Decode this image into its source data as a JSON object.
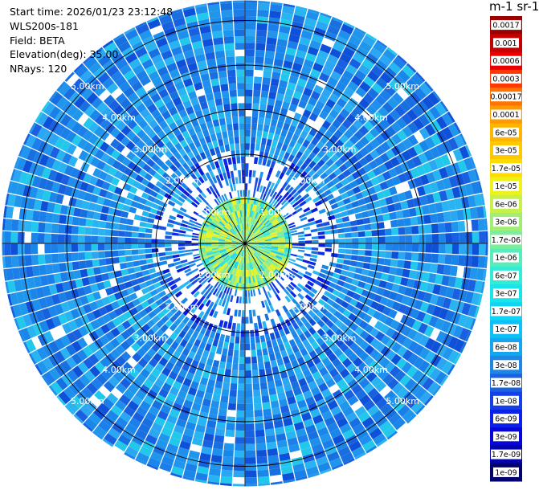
{
  "info": {
    "start_time": "Start time: 2026/01/23 23:12:48",
    "instrument": "WLS200s-181",
    "field": "Field: BETA",
    "elevation": "Elevation(deg): 35.00",
    "nrays": "NRays: 120"
  },
  "colorbar": {
    "units_label": "m-1 sr-1",
    "labels": [
      "0.0017",
      "0.001",
      "0.0006",
      "0.0003",
      "0.00017",
      "0.0001",
      "6e-05",
      "3e-05",
      "1.7e-05",
      "1e-05",
      "6e-06",
      "3e-06",
      "1.7e-06",
      "1e-06",
      "6e-07",
      "3e-07",
      "1.7e-07",
      "1e-07",
      "6e-08",
      "3e-08",
      "1.7e-08",
      "1e-08",
      "6e-09",
      "3e-09",
      "1.7e-09",
      "1e-09"
    ],
    "colors": [
      "#9a0000",
      "#c40000",
      "#ea0000",
      "#ff3a00",
      "#ff7300",
      "#ff9a00",
      "#ffb400",
      "#ffc800",
      "#ffdc00",
      "#eef21b",
      "#c8f04c",
      "#a2ee74",
      "#7ced9a",
      "#56edba",
      "#32ecd6",
      "#19e4ea",
      "#10d4f6",
      "#0ec0f8",
      "#16a4f0",
      "#1e86e6",
      "#1a62e2",
      "#1440e6",
      "#0c20ec",
      "#0606d8",
      "#0404aa",
      "#02026e"
    ]
  },
  "chart_data": {
    "type": "ppi",
    "field": "BETA",
    "elevation_deg": 35.0,
    "nrays": 120,
    "range_rings_km": [
      1,
      2,
      3,
      4,
      5
    ],
    "ring_labels": [
      "1.00km",
      "2.00km",
      "3.00km",
      "4.00km",
      "5.00km"
    ],
    "max_range_km": 5.45,
    "colorscale": "log",
    "vmin": 1e-09,
    "vmax": 0.0017,
    "grid": true,
    "legend": "colorbar-right"
  }
}
